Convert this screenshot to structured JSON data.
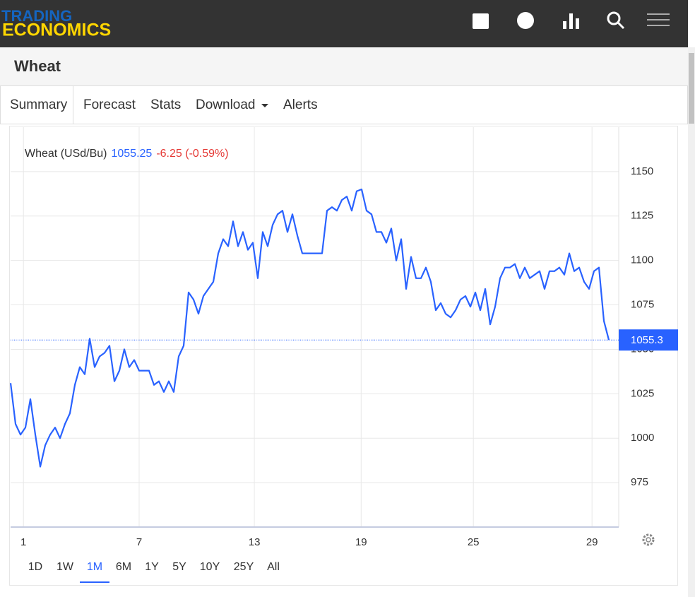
{
  "header": {
    "logo_top": "TRADING",
    "logo_bottom": "ECONOMICS"
  },
  "page_title": "Wheat",
  "tabs": [
    "Summary",
    "Forecast",
    "Stats",
    "Download",
    "Alerts"
  ],
  "ranges": [
    "1D",
    "1W",
    "1M",
    "6M",
    "1Y",
    "5Y",
    "10Y",
    "25Y",
    "All"
  ],
  "chart_data": {
    "type": "line",
    "legend": {
      "name": "Wheat (USd/Bu)",
      "price": "1055.25",
      "change": "-6.25 (-0.59%)"
    },
    "last_price": {
      "value": 1055.25,
      "label": "1055.3"
    },
    "x": [
      0,
      1,
      2,
      3,
      4,
      5,
      6,
      7,
      8,
      9,
      10,
      11,
      12,
      13,
      14,
      15,
      16,
      17,
      18,
      19,
      20,
      21,
      22,
      23,
      24,
      25,
      26,
      27,
      28,
      29,
      30,
      31,
      32,
      33,
      34,
      35,
      36,
      37,
      38,
      39,
      40,
      41,
      42,
      43,
      44,
      45,
      46,
      47,
      48,
      49,
      50,
      51,
      52,
      53,
      54,
      55,
      56,
      57,
      58,
      59,
      60,
      61,
      62,
      63,
      64,
      65,
      66,
      67,
      68,
      69,
      70,
      71,
      72,
      73,
      74,
      75,
      76,
      77,
      78,
      79,
      80,
      81,
      82,
      83,
      84,
      85,
      86,
      87,
      88,
      89,
      90,
      91,
      92,
      93,
      94,
      95,
      96,
      97,
      98,
      99,
      100,
      101,
      102,
      103,
      104,
      105,
      106,
      107,
      108,
      109,
      110,
      111,
      112,
      113,
      114,
      115,
      116,
      117,
      118,
      119,
      120,
      121
    ],
    "series": [
      {
        "name": "Wheat",
        "color": "#2962ff",
        "values": [
          1031,
          1008,
          1002,
          1006,
          1022,
          1002,
          984,
          996,
          1002,
          1006,
          1000,
          1008,
          1014,
          1030,
          1040,
          1036,
          1056,
          1040,
          1046,
          1048,
          1052,
          1032,
          1038,
          1050,
          1040,
          1044,
          1038,
          1038,
          1038,
          1030,
          1032,
          1026,
          1032,
          1026,
          1046,
          1052,
          1082,
          1078,
          1070,
          1080,
          1084,
          1088,
          1104,
          1112,
          1108,
          1122,
          1108,
          1116,
          1106,
          1110,
          1090,
          1116,
          1108,
          1120,
          1126,
          1128,
          1116,
          1126,
          1114,
          1104,
          1104,
          1104,
          1104,
          1104,
          1128,
          1130,
          1128,
          1134,
          1136,
          1128,
          1139,
          1140,
          1128,
          1126,
          1116,
          1116,
          1110,
          1118,
          1100,
          1112,
          1084,
          1102,
          1090,
          1090,
          1096,
          1088,
          1072,
          1076,
          1070,
          1068,
          1072,
          1078,
          1080,
          1074,
          1082,
          1072,
          1084,
          1064,
          1074,
          1090,
          1096,
          1096,
          1098,
          1090,
          1096,
          1090,
          1092,
          1094,
          1084,
          1094,
          1094,
          1096,
          1092,
          1104,
          1094,
          1096,
          1088,
          1084,
          1094,
          1096,
          1066,
          1055.25
        ]
      }
    ],
    "xlim": [
      0,
      123
    ],
    "xticks": [
      {
        "value": 2.6,
        "label": "1"
      },
      {
        "value": 26,
        "label": "7"
      },
      {
        "value": 49.3,
        "label": "13"
      },
      {
        "value": 70.9,
        "label": "19"
      },
      {
        "value": 93.6,
        "label": "25"
      },
      {
        "value": 117.6,
        "label": "29"
      }
    ],
    "ylim": [
      950,
      1175
    ],
    "yticks": [
      975,
      1000,
      1025,
      1050,
      1075,
      1100,
      1125,
      1150
    ],
    "grid": true
  }
}
